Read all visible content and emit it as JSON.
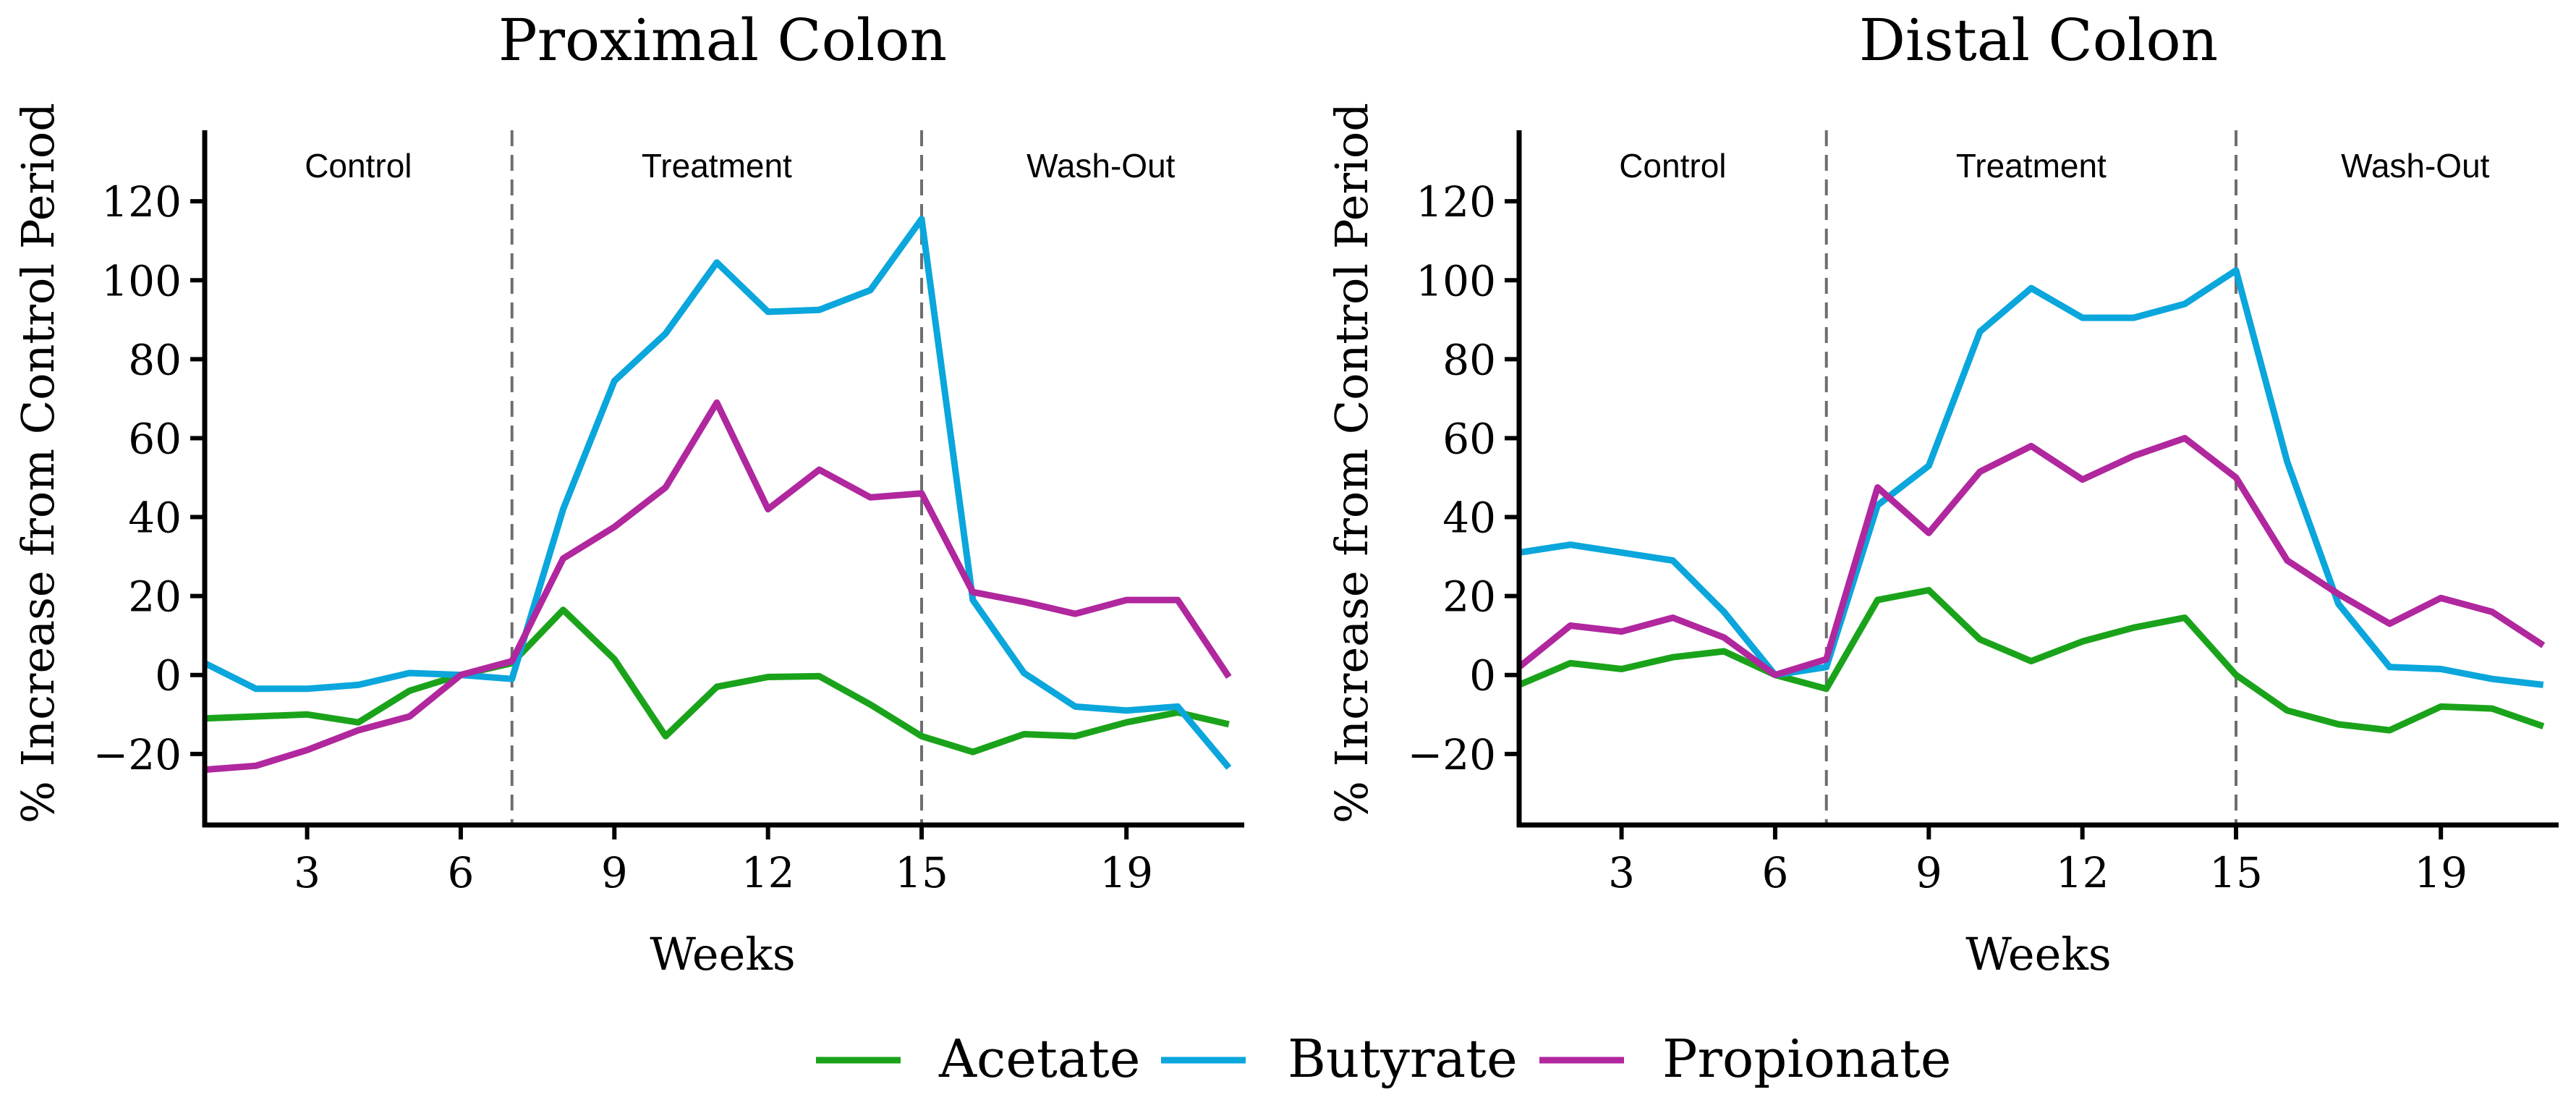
{
  "colors": {
    "acetate": "#1aa31a",
    "butyrate": "#0aa6dc",
    "propionate": "#b0279e",
    "axis": "#000000",
    "divider": "#6e6e6e"
  },
  "legend": {
    "items": [
      {
        "name": "Acetate",
        "color": "#1aa31a"
      },
      {
        "name": "Butyrate",
        "color": "#0aa6dc"
      },
      {
        "name": "Propionate",
        "color": "#b0279e"
      }
    ]
  },
  "chart_data": [
    {
      "type": "line",
      "title": "Proximal Colon",
      "xlabel": "Weeks",
      "ylabel": "% Increase from Control Period",
      "xlim": [
        1,
        21.3
      ],
      "ylim": [
        -38,
        138
      ],
      "xticks": [
        3,
        6,
        9,
        12,
        15,
        19
      ],
      "yticks": [
        -20,
        0,
        20,
        40,
        60,
        80,
        100,
        120
      ],
      "phase_dividers": [
        7,
        15
      ],
      "phases": [
        {
          "label": "Control",
          "center": 4
        },
        {
          "label": "Treatment",
          "center": 11
        },
        {
          "label": "Wash-Out",
          "center": 18.5
        }
      ],
      "x": [
        1,
        2,
        3,
        4,
        5,
        6,
        7,
        8,
        9,
        10,
        11,
        12,
        13,
        14,
        15,
        16,
        17,
        18,
        19,
        20,
        21
      ],
      "series": [
        {
          "name": "Acetate",
          "values": [
            -11,
            -10.5,
            -10,
            -12,
            -4,
            0,
            3,
            16.5,
            4,
            -15.5,
            -3,
            -0.5,
            -0.3,
            -7.5,
            -15.5,
            -19.5,
            -15,
            -15.5,
            -12,
            -9.5,
            -12.5
          ]
        },
        {
          "name": "Butyrate",
          "values": [
            3,
            -3.5,
            -3.5,
            -2.5,
            0.5,
            0,
            -1,
            42,
            74.5,
            86.5,
            104.5,
            92,
            92.5,
            97.5,
            115.5,
            19,
            0.5,
            -8,
            -9,
            -8,
            -23.5
          ]
        },
        {
          "name": "Propionate",
          "values": [
            -24,
            -23,
            -19,
            -14,
            -10.5,
            0,
            3.5,
            29.5,
            37.5,
            47.5,
            69,
            42,
            52,
            45,
            46,
            21,
            18.5,
            15.5,
            19,
            19,
            -0.5
          ]
        }
      ]
    },
    {
      "type": "line",
      "title": "Distal Colon",
      "xlabel": "Weeks",
      "ylabel": "% Increase from Control Period",
      "xlim": [
        1,
        21.3
      ],
      "ylim": [
        -38,
        138
      ],
      "xticks": [
        3,
        6,
        9,
        12,
        15,
        19
      ],
      "yticks": [
        -20,
        0,
        20,
        40,
        60,
        80,
        100,
        120
      ],
      "phase_dividers": [
        7,
        15
      ],
      "phases": [
        {
          "label": "Control",
          "center": 4
        },
        {
          "label": "Treatment",
          "center": 11
        },
        {
          "label": "Wash-Out",
          "center": 18.5
        }
      ],
      "x": [
        1,
        2,
        3,
        4,
        5,
        6,
        7,
        8,
        9,
        10,
        11,
        12,
        13,
        14,
        15,
        16,
        17,
        18,
        19,
        20,
        21
      ],
      "series": [
        {
          "name": "Acetate",
          "values": [
            -2.5,
            3,
            1.5,
            4.5,
            6,
            0,
            -3.5,
            19,
            21.5,
            9,
            3.5,
            8.5,
            12,
            14.5,
            0,
            -9,
            -12.5,
            -14,
            -8,
            -8.5,
            -13
          ]
        },
        {
          "name": "Butyrate",
          "values": [
            31,
            33,
            31,
            29,
            16,
            0,
            2,
            43,
            53,
            87,
            98,
            90.5,
            90.5,
            94,
            102.5,
            54,
            18,
            2,
            1.5,
            -1,
            -2.5
          ]
        },
        {
          "name": "Propionate",
          "values": [
            2,
            12.5,
            11,
            14.5,
            9.5,
            0,
            4,
            47.5,
            36,
            51.5,
            58,
            49.5,
            55.5,
            60,
            50,
            29,
            20.5,
            13,
            19.5,
            16,
            7.5
          ]
        }
      ]
    }
  ]
}
